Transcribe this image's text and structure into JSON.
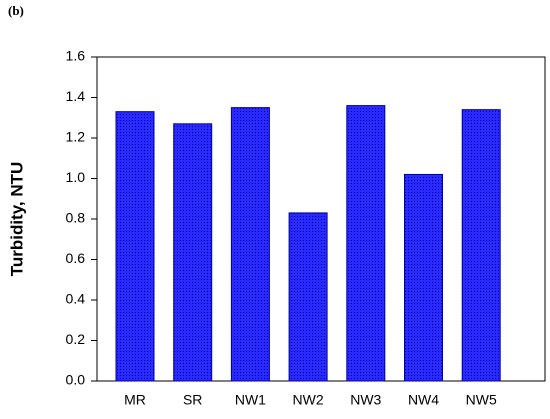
{
  "chart_data": {
    "type": "bar",
    "panel_label": "(b)",
    "y_label": "Turbidity,  NTU",
    "categories": [
      "MR",
      "SR",
      "NW1",
      "NW2",
      "NW3",
      "NW4",
      "NW5"
    ],
    "values": [
      1.33,
      1.27,
      1.35,
      0.83,
      1.36,
      1.02,
      1.34
    ],
    "color": "#1f1fff",
    "ylim": [
      0,
      1.6
    ],
    "yticks": [
      {
        "value": 0,
        "label": "0.0"
      },
      0.2,
      0.4,
      0.6,
      0.8,
      {
        "value": 1,
        "label": "1.0"
      },
      1.2,
      1.4,
      1.6
    ],
    "grid": false
  }
}
